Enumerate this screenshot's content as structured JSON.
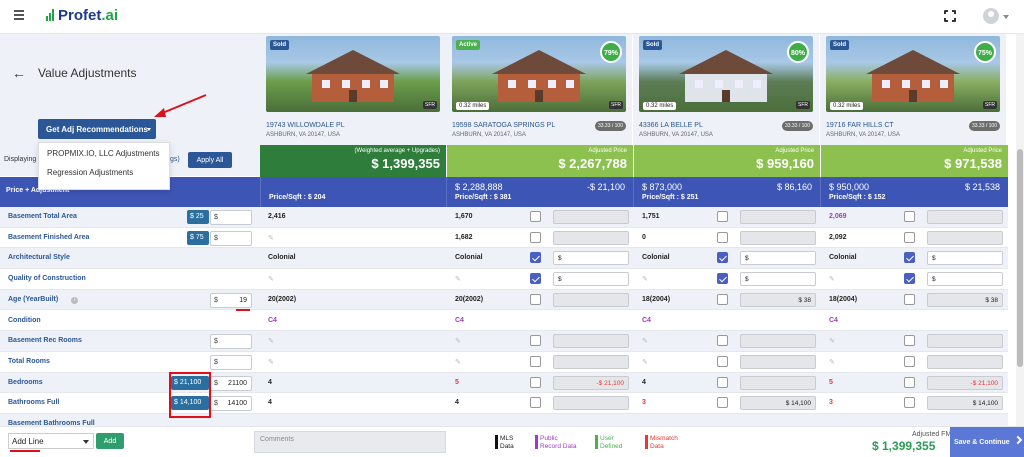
{
  "app": {
    "logo_text": "Profet",
    "logo_suffix": ".ai"
  },
  "page": {
    "title": "Value Adjustments",
    "back_icon": "arrow-left-icon"
  },
  "controls": {
    "get_adj_label": "Get Adj Recommendations",
    "dropdown": [
      "PROPMIX.IO, LLC Adjustments",
      "Regression Adjustments"
    ],
    "displaying_label": "Displaying",
    "gs_tail": "gs)",
    "apply_all": "Apply All"
  },
  "subject": {
    "weighted_label": "(Weighted average + Upgrades)",
    "price": "$ 1,399,355",
    "price_sqft": "Price/Sqft : $ 204",
    "header_label": "Price + Adjustment"
  },
  "comps": [
    {
      "status": "Sold",
      "status_color": "#2b5797",
      "score": "",
      "miles": "",
      "sfr": "SFR",
      "address": "19743 WILLOWDALE PL",
      "city": "ASHBURN, VA 20147, USA",
      "pct": "",
      "adj_label": "",
      "adj_price": "",
      "price": "",
      "diff": "",
      "price_sqft": "Price/Sqft : $ 204"
    },
    {
      "status": "Active",
      "status_color": "#4caf50",
      "score": "79%",
      "miles": "0.32 miles",
      "sfr": "SFR",
      "address": "19598 SARATOGA SPRINGS PL",
      "city": "ASHBURN, VA 20147, USA",
      "pct": "33.33 / 100",
      "adj_label": "Adjusted Price",
      "adj_price": "$ 2,267,788",
      "price": "$ 2,288,888",
      "diff": "-$ 21,100",
      "price_sqft": "Price/Sqft : $ 381"
    },
    {
      "status": "Sold",
      "status_color": "#2b5797",
      "score": "80%",
      "miles": "0.32 miles",
      "sfr": "SFR",
      "address": "43366 LA BELLE PL",
      "city": "ASHBURN, VA 20147, USA",
      "pct": "33.33 / 100",
      "adj_label": "Adjusted Price",
      "adj_price": "$ 959,160",
      "price": "$ 873,000",
      "diff": "$ 86,160",
      "price_sqft": "Price/Sqft : $ 251"
    },
    {
      "status": "Sold",
      "status_color": "#2b5797",
      "score": "75%",
      "miles": "0.32 miles",
      "sfr": "SFR",
      "address": "19716 FAR HILLS CT",
      "city": "ASHBURN, VA 20147, USA",
      "pct": "33.33 / 100",
      "adj_label": "Adjusted Price",
      "adj_price": "$ 971,538",
      "price": "$ 950,000",
      "diff": "$ 21,538",
      "price_sqft": "Price/Sqft : $ 152"
    }
  ],
  "rows": [
    {
      "label": "Basement Total Area",
      "chip": "$ 25",
      "input": "",
      "subject": "2,416",
      "c": [
        [
          "1,670",
          "n",
          ""
        ],
        [
          "1,751",
          "n",
          ""
        ],
        [
          "2,069",
          "n",
          ""
        ]
      ]
    },
    {
      "label": "Basement Finished Area",
      "chip": "$ 75",
      "input": "",
      "subject": "",
      "c": [
        [
          "1,682",
          "n",
          ""
        ],
        [
          "0",
          "n",
          ""
        ],
        [
          "2,092",
          "n",
          ""
        ]
      ]
    },
    {
      "label": "Architectural Style",
      "chip": "",
      "input": "",
      "subject": "Colonial",
      "c": [
        [
          "Colonial",
          "y",
          "$"
        ],
        [
          "Colonial",
          "y",
          "$"
        ],
        [
          "Colonial",
          "y",
          "$"
        ]
      ]
    },
    {
      "label": "Quality of Construction",
      "chip": "",
      "input": "",
      "subject": "",
      "c": [
        [
          "",
          "y",
          "$"
        ],
        [
          "",
          "y",
          "$"
        ],
        [
          "",
          "y",
          "$"
        ]
      ]
    },
    {
      "label": "Age (YearBuilt)",
      "chip": "",
      "input": "19",
      "subject": "20(2002)",
      "c": [
        [
          "20(2002)",
          "n",
          ""
        ],
        [
          "18(2004)",
          "n",
          "$ 38"
        ],
        [
          "18(2004)",
          "n",
          "$ 38"
        ]
      ]
    },
    {
      "label": "Condition",
      "chip": "",
      "input": "",
      "subject": "C4",
      "c": [
        [
          "C4",
          "",
          ""
        ],
        [
          "C4",
          "",
          ""
        ],
        [
          "C4",
          "",
          ""
        ]
      ]
    },
    {
      "label": "Basement Rec Rooms",
      "chip": "",
      "input": "",
      "subject": "",
      "c": [
        [
          "",
          "n",
          ""
        ],
        [
          "",
          "n",
          ""
        ],
        [
          "",
          "n",
          ""
        ]
      ]
    },
    {
      "label": "Total Rooms",
      "chip": "",
      "input": "",
      "subject": "",
      "c": [
        [
          "",
          "n",
          ""
        ],
        [
          "",
          "n",
          ""
        ],
        [
          "",
          "n",
          ""
        ]
      ]
    },
    {
      "label": "Bedrooms",
      "chip": "$ 21,100",
      "input": "21100",
      "subject": "4",
      "c": [
        [
          "5",
          "n",
          "-$ 21,100"
        ],
        [
          "4",
          "n",
          ""
        ],
        [
          "5",
          "n",
          "-$ 21,100"
        ]
      ]
    },
    {
      "label": "Bathrooms Full",
      "chip": "$ 14,100",
      "input": "14100",
      "subject": "4",
      "c": [
        [
          "4",
          "n",
          ""
        ],
        [
          "3",
          "n",
          "$ 14,100"
        ],
        [
          "3",
          "n",
          "$ 14,100"
        ]
      ]
    },
    {
      "label": "Basement Bathrooms Full",
      "chip": "",
      "input": "",
      "subject": "",
      "c": [
        [
          "",
          "",
          ""
        ],
        [
          "",
          "",
          ""
        ],
        [
          "",
          "",
          ""
        ]
      ]
    }
  ],
  "footer": {
    "add_line": "Add Line",
    "add_btn": "Add",
    "comments_placeholder": "Comments",
    "legend": [
      {
        "l1": "MLS",
        "l2": "Data",
        "color": "#111111"
      },
      {
        "l1": "Public",
        "l2": "Record Data",
        "color": "#a43ac4"
      },
      {
        "l1": "User",
        "l2": "Defined",
        "color": "#4caf50"
      },
      {
        "l1": "Mismatch",
        "l2": "Data",
        "color": "#e53935"
      }
    ],
    "fmv_label": "Adjusted FMV:",
    "fmv": "$ 1,399,355",
    "save_btn": "Save & Continue"
  }
}
